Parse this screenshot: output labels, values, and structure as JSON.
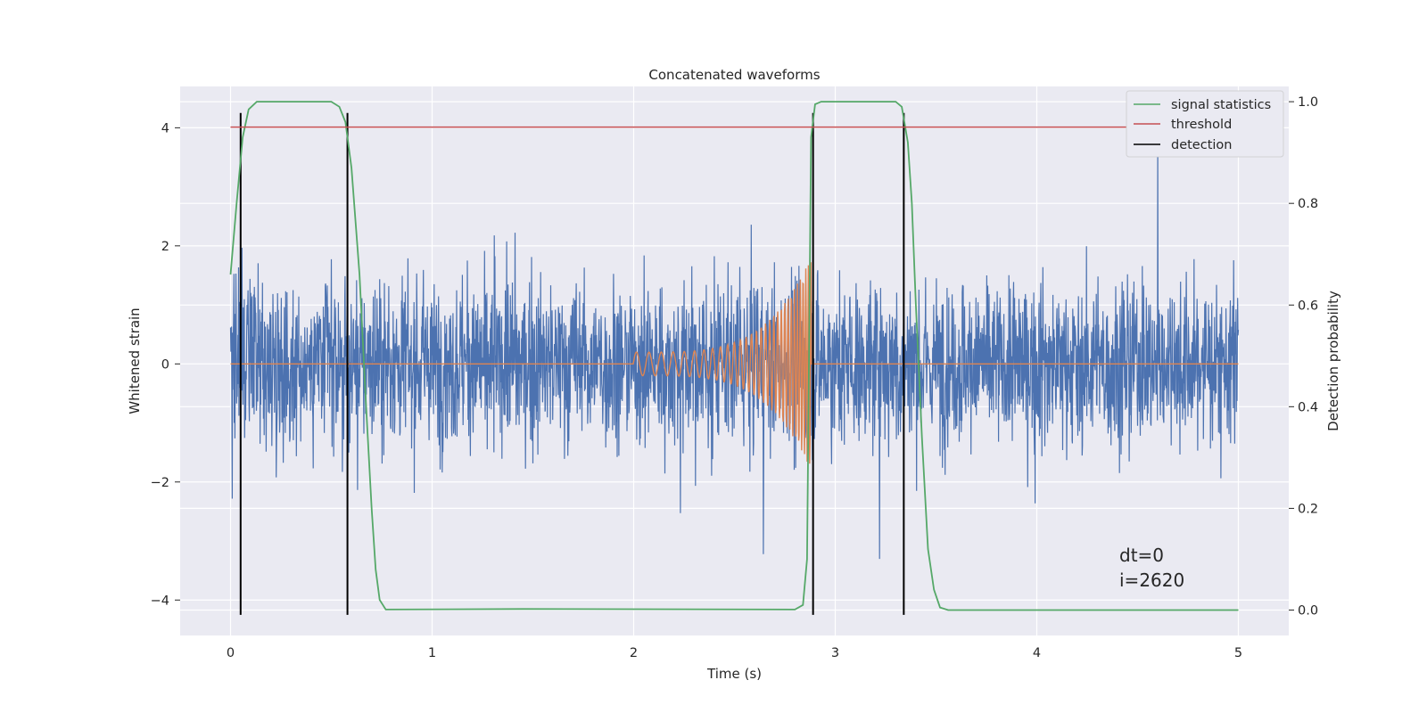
{
  "chart_data": {
    "type": "line",
    "title": "Concatenated waveforms",
    "xlabel": "Time (s)",
    "ylabel_left": "Whitened strain",
    "ylabel_right": "Detection probability",
    "xlim": [
      -0.25,
      5.25
    ],
    "ylim_left": [
      -4.6,
      4.7
    ],
    "ylim_right": [
      -0.05,
      1.03
    ],
    "xticks": [
      0,
      1,
      2,
      3,
      4,
      5
    ],
    "yticks_left": [
      -4,
      -2,
      0,
      2,
      4
    ],
    "yticks_right": [
      0.0,
      0.2,
      0.4,
      0.6,
      0.8,
      1.0
    ],
    "grid": true,
    "legend_position": "top-right",
    "series": [
      {
        "name": "",
        "kind": "noise",
        "axis": "left",
        "color": "#4c72b0",
        "x_range": [
          0,
          5
        ],
        "typical_amplitude": 1.3,
        "peak_amplitude": 4.3
      },
      {
        "name": "",
        "kind": "chirp",
        "axis": "left",
        "color": "#dd8452",
        "x_range": [
          0,
          5
        ],
        "chirp_start": 2.0,
        "merger": 2.88,
        "start_amplitude": 0.2,
        "peak_amplitude": 1.8,
        "start_frequency_hz": 16,
        "end_frequency_hz": 80
      },
      {
        "name": "signal statistics",
        "axis": "right",
        "color": "#55a868",
        "points": [
          [
            0.0,
            0.66
          ],
          [
            0.03,
            0.8
          ],
          [
            0.06,
            0.93
          ],
          [
            0.09,
            0.985
          ],
          [
            0.13,
            1.0
          ],
          [
            0.5,
            1.0
          ],
          [
            0.54,
            0.99
          ],
          [
            0.57,
            0.96
          ],
          [
            0.6,
            0.87
          ],
          [
            0.64,
            0.66
          ],
          [
            0.67,
            0.42
          ],
          [
            0.7,
            0.2
          ],
          [
            0.72,
            0.08
          ],
          [
            0.74,
            0.02
          ],
          [
            0.77,
            0.001
          ],
          [
            1.45,
            0.002
          ],
          [
            2.8,
            0.001
          ],
          [
            2.84,
            0.01
          ],
          [
            2.86,
            0.1
          ],
          [
            2.87,
            0.5
          ],
          [
            2.88,
            0.93
          ],
          [
            2.9,
            0.995
          ],
          [
            2.93,
            1.0
          ],
          [
            3.3,
            1.0
          ],
          [
            3.33,
            0.99
          ],
          [
            3.36,
            0.92
          ],
          [
            3.38,
            0.8
          ],
          [
            3.4,
            0.6
          ],
          [
            3.43,
            0.34
          ],
          [
            3.46,
            0.12
          ],
          [
            3.49,
            0.04
          ],
          [
            3.52,
            0.005
          ],
          [
            3.56,
            0.0
          ],
          [
            5.0,
            0.0
          ]
        ]
      },
      {
        "name": "threshold",
        "axis": "right",
        "color": "#c44e52",
        "x_range": [
          0,
          5
        ],
        "value": 0.95
      },
      {
        "name": "detection",
        "axis": "left",
        "color": "#000000",
        "vlines": [
          0.05,
          0.58,
          2.89,
          3.34
        ],
        "y_range": [
          -4.25,
          4.25
        ]
      }
    ],
    "annotations": [
      "dt=0",
      "i=2620"
    ]
  }
}
